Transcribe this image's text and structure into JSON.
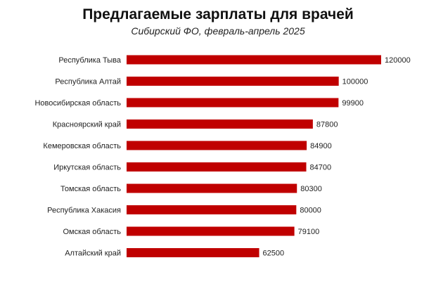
{
  "chart_data": {
    "type": "bar",
    "orientation": "horizontal",
    "title": "Предлагаемые зарплаты для врачей",
    "subtitle": "Сибирский ФО, февраль-апрель 2025",
    "categories": [
      "Республика Тыва",
      "Республика Алтай",
      "Новосибирская область",
      "Красноярский край",
      "Кемеровская область",
      "Иркутская область",
      "Томская область",
      "Республика Хакасия",
      "Омская область",
      "Алтайский край"
    ],
    "values": [
      120000,
      100000,
      99900,
      87800,
      84900,
      84700,
      80300,
      80000,
      79100,
      62500
    ],
    "value_labels": [
      "120000",
      "100000",
      "99900",
      "87800",
      "84900",
      "84700",
      "80300",
      "80000",
      "79100",
      "62500"
    ],
    "xlim": [
      0,
      120000
    ],
    "bar_color": "#c00000",
    "grid": false,
    "data_labels": "outside-end"
  }
}
